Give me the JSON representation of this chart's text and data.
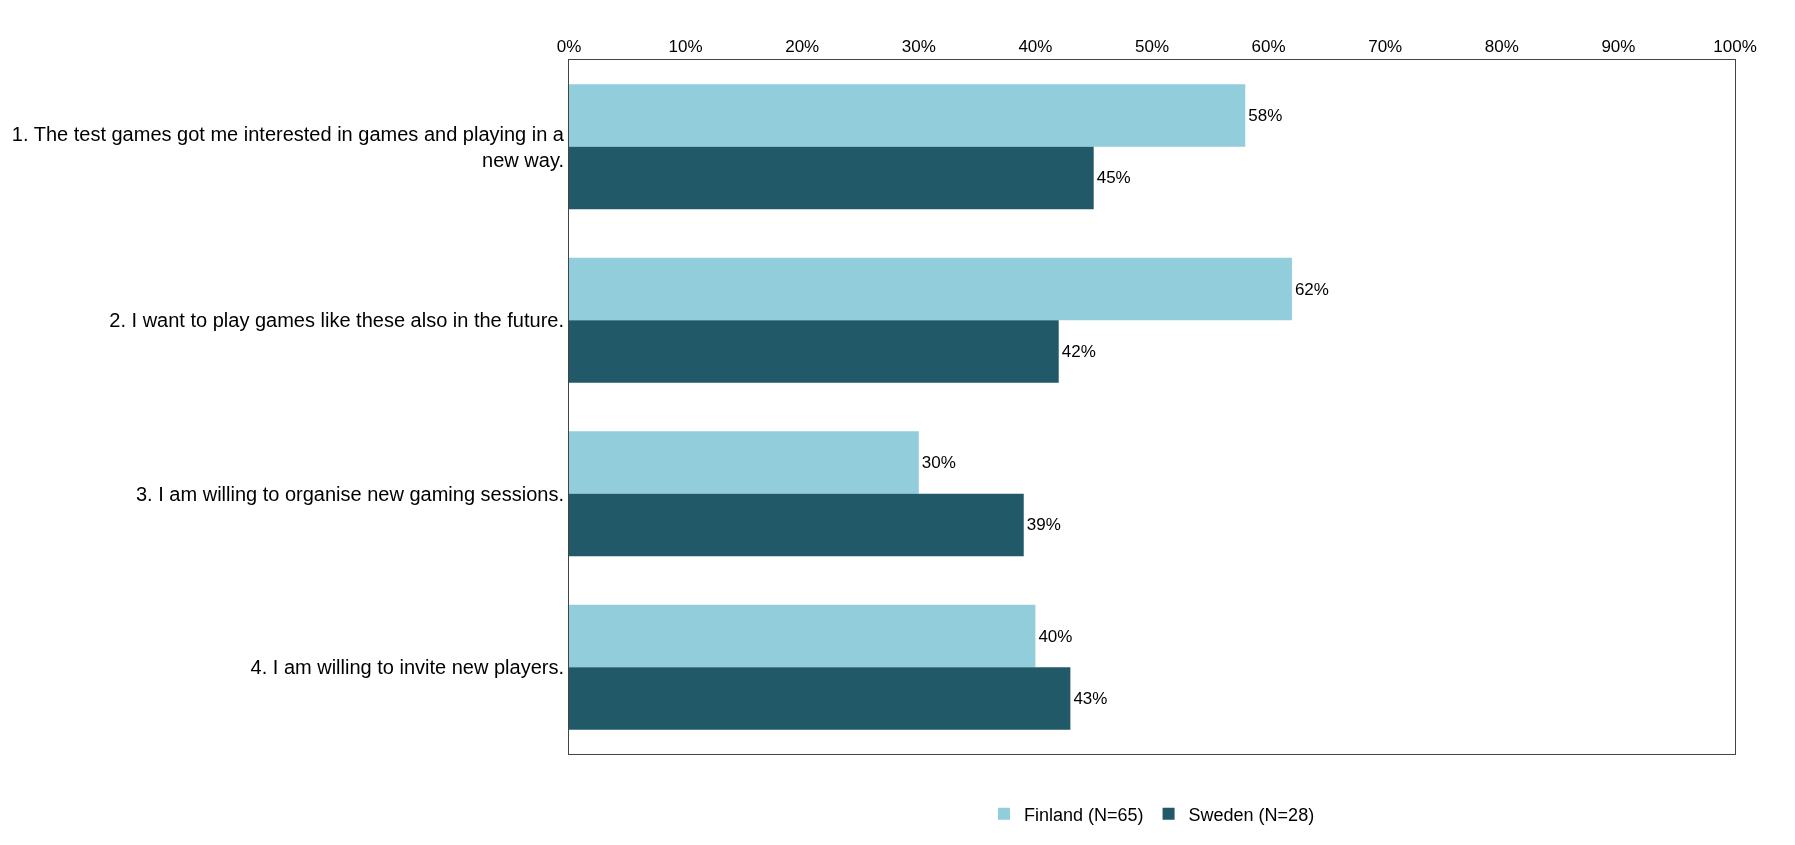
{
  "chart_data": {
    "type": "bar",
    "orientation": "horizontal",
    "categories": [
      "1. The test games got me interested in games and playing in a new way.",
      "2. I want to play games like these also in the future.",
      "3. I am willing to organise new gaming sessions.",
      "4. I am willing to invite new players."
    ],
    "series": [
      {
        "name": "Finland (N=65)",
        "color": "#92cddc",
        "values": [
          58,
          62,
          30,
          40
        ],
        "value_labels": [
          "58%",
          "62%",
          "30%",
          "40%"
        ]
      },
      {
        "name": "Sweden (N=28)",
        "color": "#215968",
        "values": [
          45,
          42,
          39,
          43
        ],
        "value_labels": [
          "45%",
          "42%",
          "39%",
          "43%"
        ]
      }
    ],
    "xlim": [
      0,
      100
    ],
    "xticks": [
      {
        "value": 0,
        "label": "0%"
      },
      {
        "value": 10,
        "label": "10%"
      },
      {
        "value": 20,
        "label": "20%"
      },
      {
        "value": 30,
        "label": "30%"
      },
      {
        "value": 40,
        "label": "40%"
      },
      {
        "value": 50,
        "label": "50%"
      },
      {
        "value": 60,
        "label": "60%"
      },
      {
        "value": 70,
        "label": "70%"
      },
      {
        "value": 80,
        "label": "80%"
      },
      {
        "value": 90,
        "label": "90%"
      },
      {
        "value": 100,
        "label": "100%"
      }
    ],
    "grid": false,
    "legend": "bottom"
  }
}
